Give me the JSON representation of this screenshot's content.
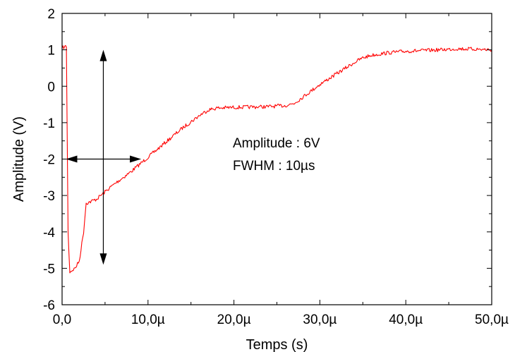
{
  "chart_data": {
    "type": "line",
    "title": "",
    "xlabel": "Temps (s)",
    "ylabel": "Amplitude (V)",
    "xlim": [
      0,
      5e-05
    ],
    "ylim": [
      -6,
      2
    ],
    "x_ticks": [
      0,
      1e-05,
      2e-05,
      3e-05,
      4e-05,
      5e-05
    ],
    "x_tick_labels": [
      "0,0",
      "10,0µ",
      "20,0µ",
      "30,0µ",
      "40,0µ",
      "50,0µ"
    ],
    "y_ticks": [
      -6,
      -5,
      -4,
      -3,
      -2,
      -1,
      0,
      1,
      2
    ],
    "y_tick_labels": [
      "-6",
      "-5",
      "-4",
      "-3",
      "-2",
      "-1",
      "0",
      "1",
      "2"
    ],
    "grid": false,
    "series": [
      {
        "color": "#ff0000",
        "x": [
          0,
          5e-07,
          7e-07,
          9e-07,
          1.5e-06,
          2e-06,
          2.5e-06,
          2.8e-06,
          3e-06,
          4e-06,
          6e-06,
          8e-06,
          1e-05,
          1.2e-05,
          1.4e-05,
          1.6e-05,
          1.7e-05,
          1.8e-05,
          2e-05,
          2.2e-05,
          2.4e-05,
          2.6e-05,
          2.7e-05,
          2.8e-05,
          3e-05,
          3.2e-05,
          3.4e-05,
          3.5e-05,
          3.6e-05,
          3.8e-05,
          4e-05,
          4.2e-05,
          4.4e-05,
          4.6e-05,
          4.8e-05,
          5e-05
        ],
        "y": [
          1.05,
          1.1,
          -4.0,
          -5.1,
          -5.0,
          -4.8,
          -4.0,
          -3.2,
          -3.2,
          -3.1,
          -2.7,
          -2.35,
          -1.95,
          -1.55,
          -1.15,
          -0.8,
          -0.65,
          -0.6,
          -0.58,
          -0.57,
          -0.56,
          -0.53,
          -0.47,
          -0.3,
          0.05,
          0.35,
          0.65,
          0.78,
          0.85,
          0.92,
          0.96,
          0.98,
          1.0,
          1.03,
          1.02,
          1.0
        ]
      }
    ],
    "annotations": [
      {
        "text": "Amplitude : 6V"
      },
      {
        "text": "FWHM : 10µs"
      }
    ]
  }
}
